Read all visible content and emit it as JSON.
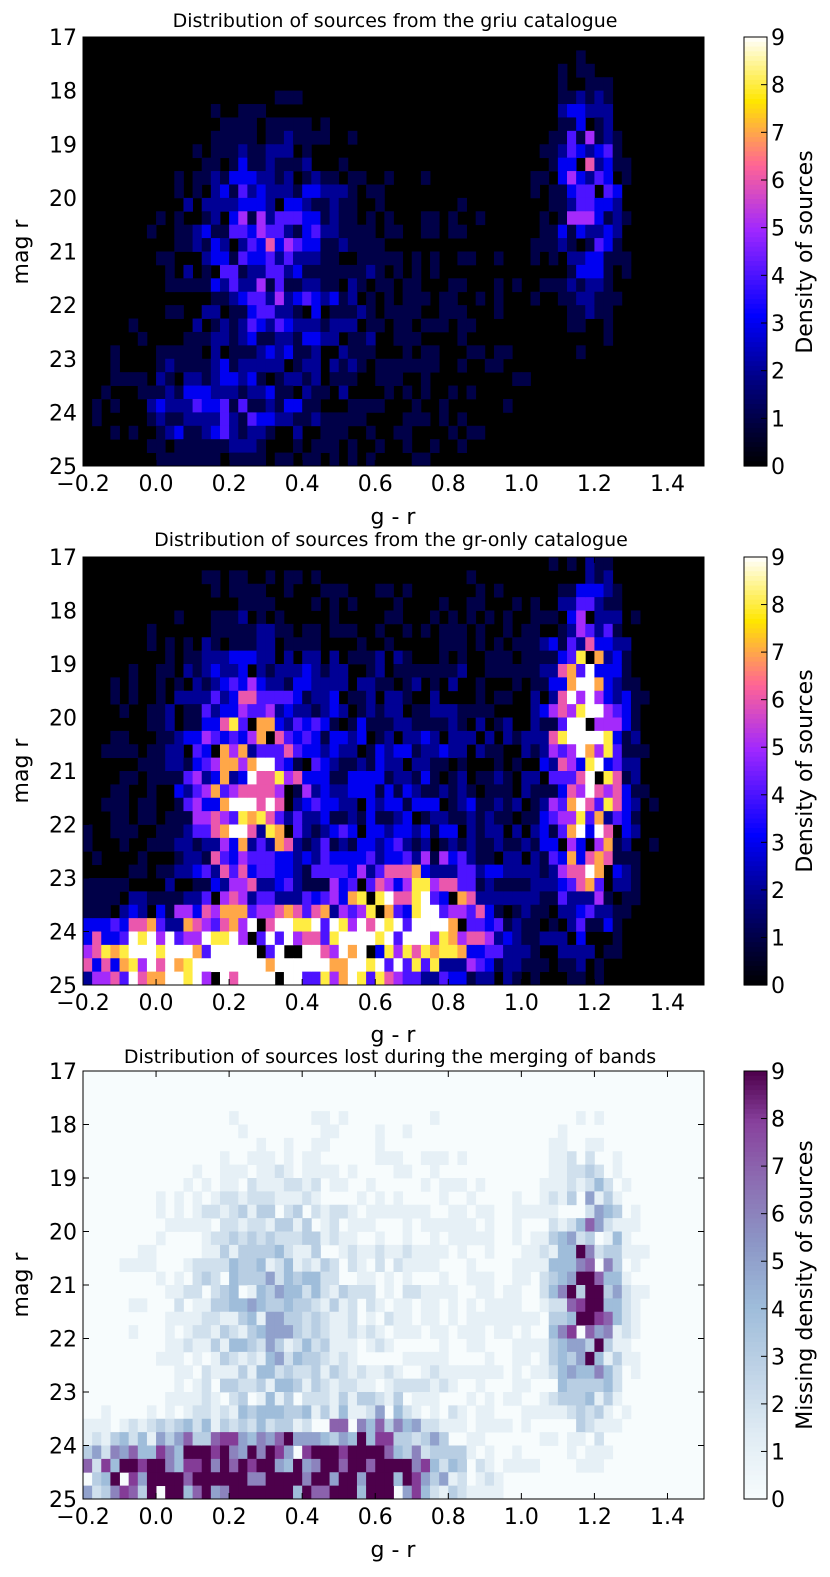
{
  "chart_data": [
    {
      "type": "heatmap",
      "title": "Distribution of sources from the griu catalogue",
      "xlabel": "g - r",
      "ylabel": "mag r",
      "xlim": [
        -0.2,
        1.5
      ],
      "ylim": [
        17,
        25
      ],
      "y_inverted": true,
      "xticks": [
        "−0.2",
        "0.0",
        "0.2",
        "0.4",
        "0.6",
        "0.8",
        "1.0",
        "1.2",
        "1.4"
      ],
      "yticks": [
        "17",
        "18",
        "19",
        "20",
        "21",
        "22",
        "23",
        "24",
        "25"
      ],
      "colormap": "gnuplot2",
      "colorbar": {
        "label": "Density of sources",
        "range": [
          0,
          9
        ],
        "ticks": [
          "0",
          "1",
          "2",
          "3",
          "4",
          "5",
          "6",
          "7",
          "8",
          "9"
        ]
      },
      "density_features": [
        {
          "x": 0.3,
          "y": 20.8,
          "level": 3,
          "sx": 0.12,
          "sy": 1.4
        },
        {
          "x": 0.15,
          "y": 24.0,
          "level": 2,
          "sx": 0.15,
          "sy": 0.6
        },
        {
          "x": 1.18,
          "y": 19.8,
          "level": 4,
          "sx": 0.06,
          "sy": 1.3
        },
        {
          "x": 0.5,
          "y": 22.5,
          "level": 1,
          "sx": 0.4,
          "sy": 2.5
        }
      ]
    },
    {
      "type": "heatmap",
      "title": "Distribution of sources from the gr-only catalogue",
      "xlabel": "g - r",
      "ylabel": "mag r",
      "xlim": [
        -0.2,
        1.5
      ],
      "ylim": [
        17,
        25
      ],
      "y_inverted": true,
      "xticks": [
        "−0.2",
        "0.0",
        "0.2",
        "0.4",
        "0.6",
        "0.8",
        "1.0",
        "1.2",
        "1.4"
      ],
      "yticks": [
        "17",
        "18",
        "19",
        "20",
        "21",
        "22",
        "23",
        "24",
        "25"
      ],
      "colormap": "gnuplot2",
      "colorbar": {
        "label": "Density of sources",
        "range": [
          0,
          9
        ],
        "ticks": [
          "0",
          "1",
          "2",
          "3",
          "4",
          "5",
          "6",
          "7",
          "8",
          "9"
        ]
      },
      "density_features": [
        {
          "x": 1.18,
          "y": 20.8,
          "level": 9,
          "sx": 0.06,
          "sy": 1.8
        },
        {
          "x": 0.2,
          "y": 24.6,
          "level": 12,
          "sx": 0.28,
          "sy": 0.55
        },
        {
          "x": 0.25,
          "y": 21.3,
          "level": 5,
          "sx": 0.1,
          "sy": 1.5
        },
        {
          "x": 0.7,
          "y": 23.8,
          "level": 6,
          "sx": 0.15,
          "sy": 0.7
        },
        {
          "x": 0.55,
          "y": 21.5,
          "level": 2,
          "sx": 0.45,
          "sy": 2.5
        }
      ]
    },
    {
      "type": "heatmap",
      "title": "Distribution of sources lost during the merging of bands",
      "xlabel": "g - r",
      "ylabel": "mag r",
      "xlim": [
        -0.2,
        1.5
      ],
      "ylim": [
        17,
        25
      ],
      "y_inverted": true,
      "xticks": [
        "−0.2",
        "0.0",
        "0.2",
        "0.4",
        "0.6",
        "0.8",
        "1.0",
        "1.2",
        "1.4"
      ],
      "yticks": [
        "17",
        "18",
        "19",
        "20",
        "21",
        "22",
        "23",
        "24",
        "25"
      ],
      "colormap": "BuPu",
      "colorbar": {
        "label": "Missing density of sources",
        "range": [
          0,
          9
        ],
        "ticks": [
          "0",
          "1",
          "2",
          "3",
          "4",
          "5",
          "6",
          "7",
          "8",
          "9"
        ]
      },
      "density_features": [
        {
          "x": 1.18,
          "y": 21.2,
          "level": 7,
          "sx": 0.06,
          "sy": 1.4
        },
        {
          "x": 0.2,
          "y": 24.6,
          "level": 12,
          "sx": 0.28,
          "sy": 0.5
        },
        {
          "x": 0.6,
          "y": 24.3,
          "level": 6,
          "sx": 0.12,
          "sy": 0.6
        },
        {
          "x": 0.3,
          "y": 21.5,
          "level": 2.5,
          "sx": 0.12,
          "sy": 1.5
        },
        {
          "x": 0.55,
          "y": 21.5,
          "level": 1.2,
          "sx": 0.45,
          "sy": 2.5
        }
      ]
    }
  ]
}
